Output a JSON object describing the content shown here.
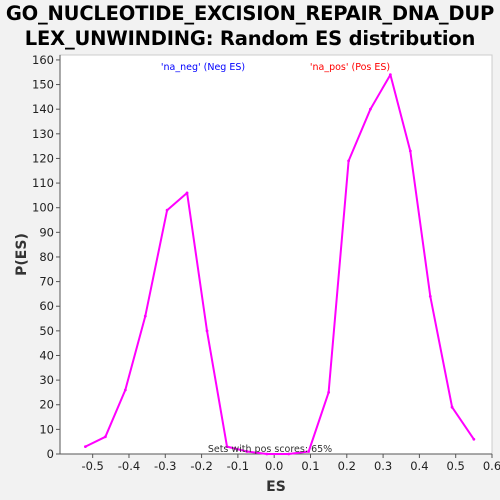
{
  "chart_data": {
    "type": "line",
    "title_lines": [
      "GO_NUCLEOTIDE_EXCISION_REPAIR_DNA_DUP",
      "LEX_UNWINDING: Random ES distribution"
    ],
    "xlabel": "ES",
    "ylabel": "P(ES)",
    "xlim": [
      -0.59,
      0.6
    ],
    "ylim": [
      0,
      162
    ],
    "x_ticks": [
      -0.5,
      -0.4,
      -0.3,
      -0.2,
      -0.1,
      0.0,
      0.1,
      0.2,
      0.3,
      0.4,
      0.5,
      0.6
    ],
    "x_tick_labels": [
      "-0.5",
      "-0.4",
      "-0.3",
      "-0.2",
      "-0.1",
      "0.0",
      "0.1",
      "0.2",
      "0.3",
      "0.4",
      "0.5",
      "0.6"
    ],
    "y_ticks": [
      0,
      10,
      20,
      30,
      40,
      50,
      60,
      70,
      80,
      90,
      100,
      110,
      120,
      130,
      140,
      150,
      160
    ],
    "y_tick_labels": [
      "0",
      "10",
      "20",
      "30",
      "40",
      "50",
      "60",
      "70",
      "80",
      "90",
      "100",
      "110",
      "120",
      "130",
      "140",
      "150",
      "160"
    ],
    "grid": false,
    "series": [
      {
        "color": "#ff00ff",
        "points": [
          [
            -0.52,
            3
          ],
          [
            -0.465,
            7
          ],
          [
            -0.41,
            26
          ],
          [
            -0.355,
            56
          ],
          [
            -0.295,
            99
          ],
          [
            -0.24,
            106
          ],
          [
            -0.185,
            50
          ],
          [
            -0.13,
            3
          ],
          [
            -0.075,
            1
          ],
          [
            -0.02,
            0
          ],
          [
            0.04,
            0
          ],
          [
            0.095,
            1
          ],
          [
            0.15,
            25
          ],
          [
            0.205,
            119
          ],
          [
            0.265,
            140
          ],
          [
            0.32,
            154
          ],
          [
            0.375,
            123
          ],
          [
            0.43,
            64
          ],
          [
            0.49,
            19
          ],
          [
            0.55,
            6
          ]
        ]
      }
    ],
    "annotations": [
      {
        "text": "'na_neg' (Neg ES)",
        "color": "#0000ff"
      },
      {
        "text": "'na_pos' (Pos ES)",
        "color": "#ff0000"
      },
      {
        "text": "Sets with pos scores: 65%",
        "color": "#333333"
      }
    ]
  }
}
